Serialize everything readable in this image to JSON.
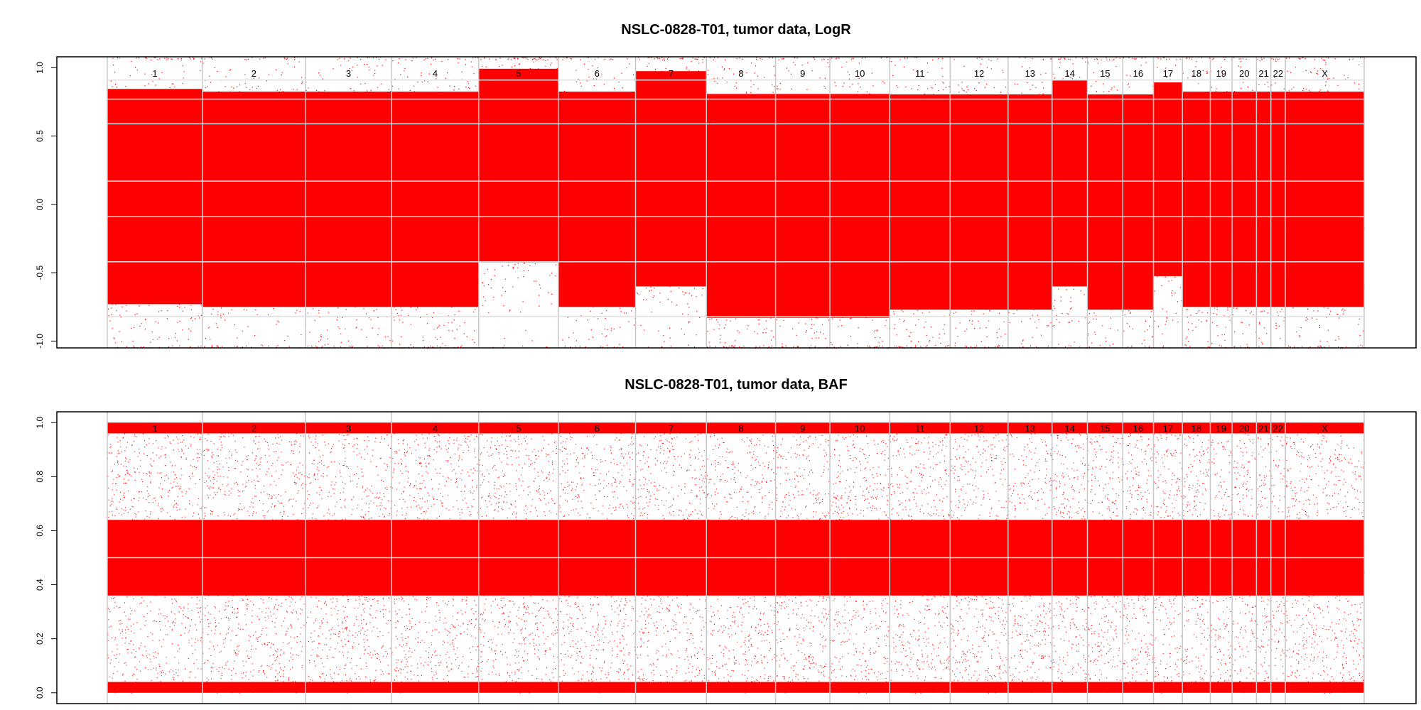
{
  "chart_data": [
    {
      "type": "scatter",
      "title": "NSLC-0828-T01, tumor data, LogR",
      "xlabel": "",
      "ylabel": "",
      "ylim": [
        -1.05,
        1.08
      ],
      "yticks": [
        -1.0,
        -0.5,
        0.0,
        0.5,
        1.0
      ],
      "ytick_labels": [
        "-1.0",
        "-0.5",
        "0.0",
        "0.5",
        "1.0"
      ],
      "grid": false,
      "point_color": "#ff0000",
      "chromosomes": [
        {
          "name": "1",
          "start": 0.0,
          "end": 0.0757
        },
        {
          "name": "2",
          "start": 0.0757,
          "end": 0.1576
        },
        {
          "name": "3",
          "start": 0.1576,
          "end": 0.2262
        },
        {
          "name": "4",
          "start": 0.2262,
          "end": 0.2955
        },
        {
          "name": "5",
          "start": 0.2955,
          "end": 0.3589
        },
        {
          "name": "6",
          "start": 0.3589,
          "end": 0.4203
        },
        {
          "name": "7",
          "start": 0.4203,
          "end": 0.4767
        },
        {
          "name": "8",
          "start": 0.4767,
          "end": 0.5317
        },
        {
          "name": "9",
          "start": 0.5317,
          "end": 0.5749
        },
        {
          "name": "10",
          "start": 0.5749,
          "end": 0.6225
        },
        {
          "name": "11",
          "start": 0.6225,
          "end": 0.6706
        },
        {
          "name": "12",
          "start": 0.6706,
          "end": 0.7167
        },
        {
          "name": "13",
          "start": 0.7167,
          "end": 0.7517
        },
        {
          "name": "14",
          "start": 0.7517,
          "end": 0.7798
        },
        {
          "name": "15",
          "start": 0.7798,
          "end": 0.8079
        },
        {
          "name": "16",
          "start": 0.8079,
          "end": 0.8324
        },
        {
          "name": "17",
          "start": 0.8324,
          "end": 0.8554
        },
        {
          "name": "18",
          "start": 0.8554,
          "end": 0.8776
        },
        {
          "name": "19",
          "start": 0.8776,
          "end": 0.8949
        },
        {
          "name": "20",
          "start": 0.8949,
          "end": 0.9143
        },
        {
          "name": "21",
          "start": 0.9143,
          "end": 0.9258
        },
        {
          "name": "22",
          "start": 0.9258,
          "end": 0.9373
        },
        {
          "name": "X",
          "start": 0.9373,
          "end": 1.0
        }
      ],
      "segments": [
        {
          "chrom": "1",
          "mean": 0.02,
          "spread": 0.5
        },
        {
          "chrom": "2",
          "mean": 0.0,
          "spread": 0.5
        },
        {
          "chrom": "3",
          "mean": 0.0,
          "spread": 0.5
        },
        {
          "chrom": "4",
          "mean": 0.0,
          "spread": 0.5
        },
        {
          "chrom": "5",
          "mean": 0.25,
          "spread": 0.45
        },
        {
          "chrom": "6",
          "mean": 0.0,
          "spread": 0.5
        },
        {
          "chrom": "7",
          "mean": 0.15,
          "spread": 0.5
        },
        {
          "chrom": "8",
          "mean": -0.05,
          "spread": 0.52
        },
        {
          "chrom": "9",
          "mean": -0.05,
          "spread": 0.52
        },
        {
          "chrom": "10",
          "mean": -0.05,
          "spread": 0.52
        },
        {
          "chrom": "11",
          "mean": -0.02,
          "spread": 0.5
        },
        {
          "chrom": "12",
          "mean": -0.02,
          "spread": 0.5
        },
        {
          "chrom": "13",
          "mean": -0.02,
          "spread": 0.5
        },
        {
          "chrom": "14",
          "mean": 0.12,
          "spread": 0.48
        },
        {
          "chrom": "15",
          "mean": -0.02,
          "spread": 0.5
        },
        {
          "chrom": "16",
          "mean": -0.02,
          "spread": 0.5
        },
        {
          "chrom": "17",
          "mean": 0.15,
          "spread": 0.45
        },
        {
          "chrom": "18",
          "mean": 0.0,
          "spread": 0.5
        },
        {
          "chrom": "19",
          "mean": 0.0,
          "spread": 0.5
        },
        {
          "chrom": "20",
          "mean": 0.0,
          "spread": 0.5
        },
        {
          "chrom": "21",
          "mean": 0.0,
          "spread": 0.5
        },
        {
          "chrom": "22",
          "mean": 0.0,
          "spread": 0.5
        },
        {
          "chrom": "X",
          "mean": 0.0,
          "spread": 0.5
        }
      ]
    },
    {
      "type": "scatter",
      "title": "NSLC-0828-T01, tumor data, BAF",
      "xlabel": "",
      "ylabel": "",
      "ylim": [
        -0.04,
        1.04
      ],
      "yticks": [
        0.0,
        0.2,
        0.4,
        0.6,
        0.8,
        1.0
      ],
      "ytick_labels": [
        "0.0",
        "0.2",
        "0.4",
        "0.6",
        "0.8",
        "1.0"
      ],
      "grid": false,
      "point_color": "#ff0000",
      "bands": [
        {
          "y": 0.98,
          "halfwidth": 0.02
        },
        {
          "y": 0.5,
          "halfwidth": 0.14
        },
        {
          "y": 0.02,
          "halfwidth": 0.02
        }
      ]
    }
  ]
}
